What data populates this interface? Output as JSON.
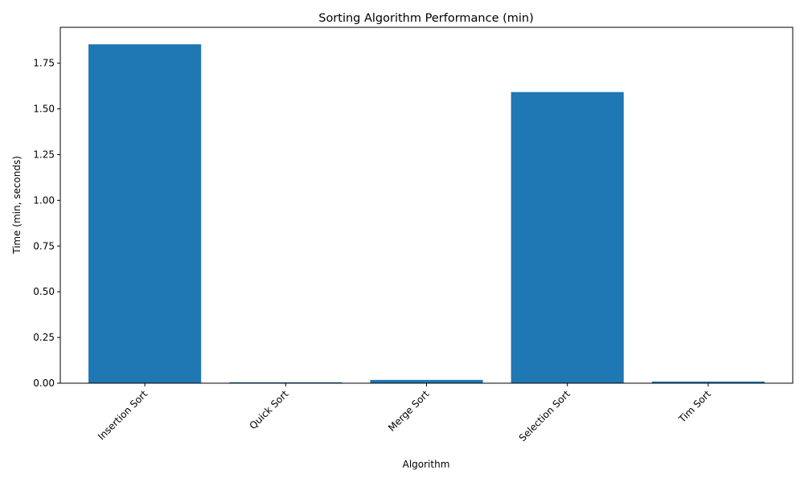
{
  "chart_data": {
    "type": "bar",
    "title": "Sorting Algorithm Performance (min)",
    "xlabel": "Algorithm",
    "ylabel": "Time (min, seconds)",
    "categories": [
      "Insertion Sort",
      "Quick Sort",
      "Merge Sort",
      "Selection Sort",
      "Tim Sort"
    ],
    "values": [
      1.853,
      0.005,
      0.018,
      1.592,
      0.009
    ],
    "ylim": [
      0,
      1.946
    ],
    "yticks": [
      "0.00",
      "0.25",
      "0.50",
      "0.75",
      "1.00",
      "1.25",
      "1.50",
      "1.75"
    ],
    "bar_color": "#1f77b4",
    "grid": false,
    "legend": "none"
  }
}
